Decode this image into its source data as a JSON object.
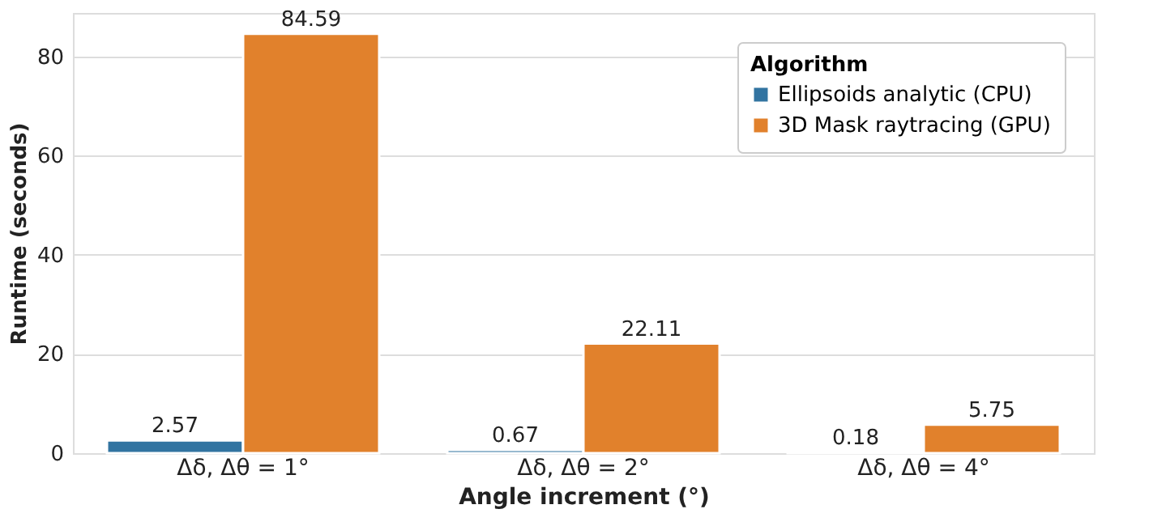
{
  "chart_data": {
    "type": "bar",
    "xlabel": "Angle increment (°)",
    "ylabel": "Runtime (seconds)",
    "legend_title": "Algorithm",
    "categories": [
      "Δδ, Δθ = 1°",
      "Δδ, Δθ = 2°",
      "Δδ, Δθ = 4°"
    ],
    "series": [
      {
        "name": "Ellipsoids analytic (CPU)",
        "color": "#3274a1",
        "values": [
          2.57,
          0.67,
          0.18
        ]
      },
      {
        "name": "3D Mask raytracing (GPU)",
        "color": "#e1812c",
        "values": [
          84.59,
          22.11,
          5.75
        ]
      }
    ],
    "ylim": [
      0,
      88.8
    ],
    "yticks": [
      0,
      20,
      40,
      60,
      80
    ],
    "grid": "y",
    "legend": "top right",
    "data_labels": true
  }
}
